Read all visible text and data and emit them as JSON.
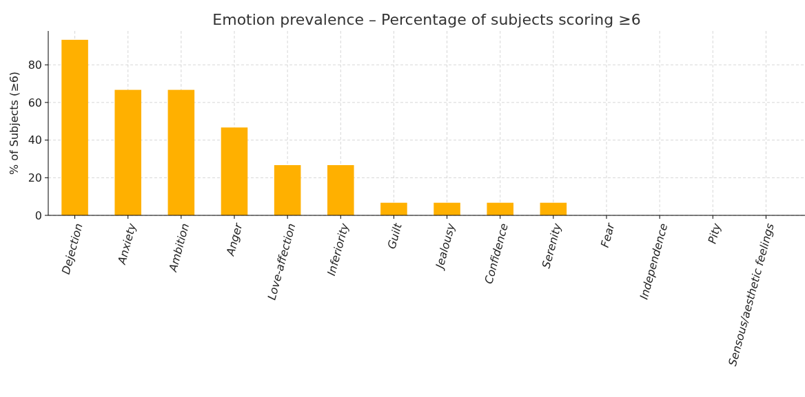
{
  "chart_data": {
    "type": "bar",
    "title": "Emotion prevalence – Percentage of subjects scoring ≥6",
    "ylabel": "% of Subjects (≥6)",
    "categories": [
      "Dejection",
      "Anxiety",
      "Ambition",
      "Anger",
      "Love-affection",
      "Inferiority",
      "Guilt",
      "Jealousy",
      "Confidence",
      "Serenity",
      "Fear",
      "Independence",
      "Pity",
      "Sensous/aesthetic feelings"
    ],
    "values": [
      93.3,
      66.7,
      66.7,
      46.7,
      26.7,
      26.7,
      6.7,
      6.7,
      6.7,
      6.7,
      0,
      0,
      0,
      0
    ],
    "color": "#ffb000",
    "ylim": [
      0,
      98
    ],
    "yticks": [
      0,
      20,
      40,
      60,
      80
    ],
    "grid": true
  }
}
